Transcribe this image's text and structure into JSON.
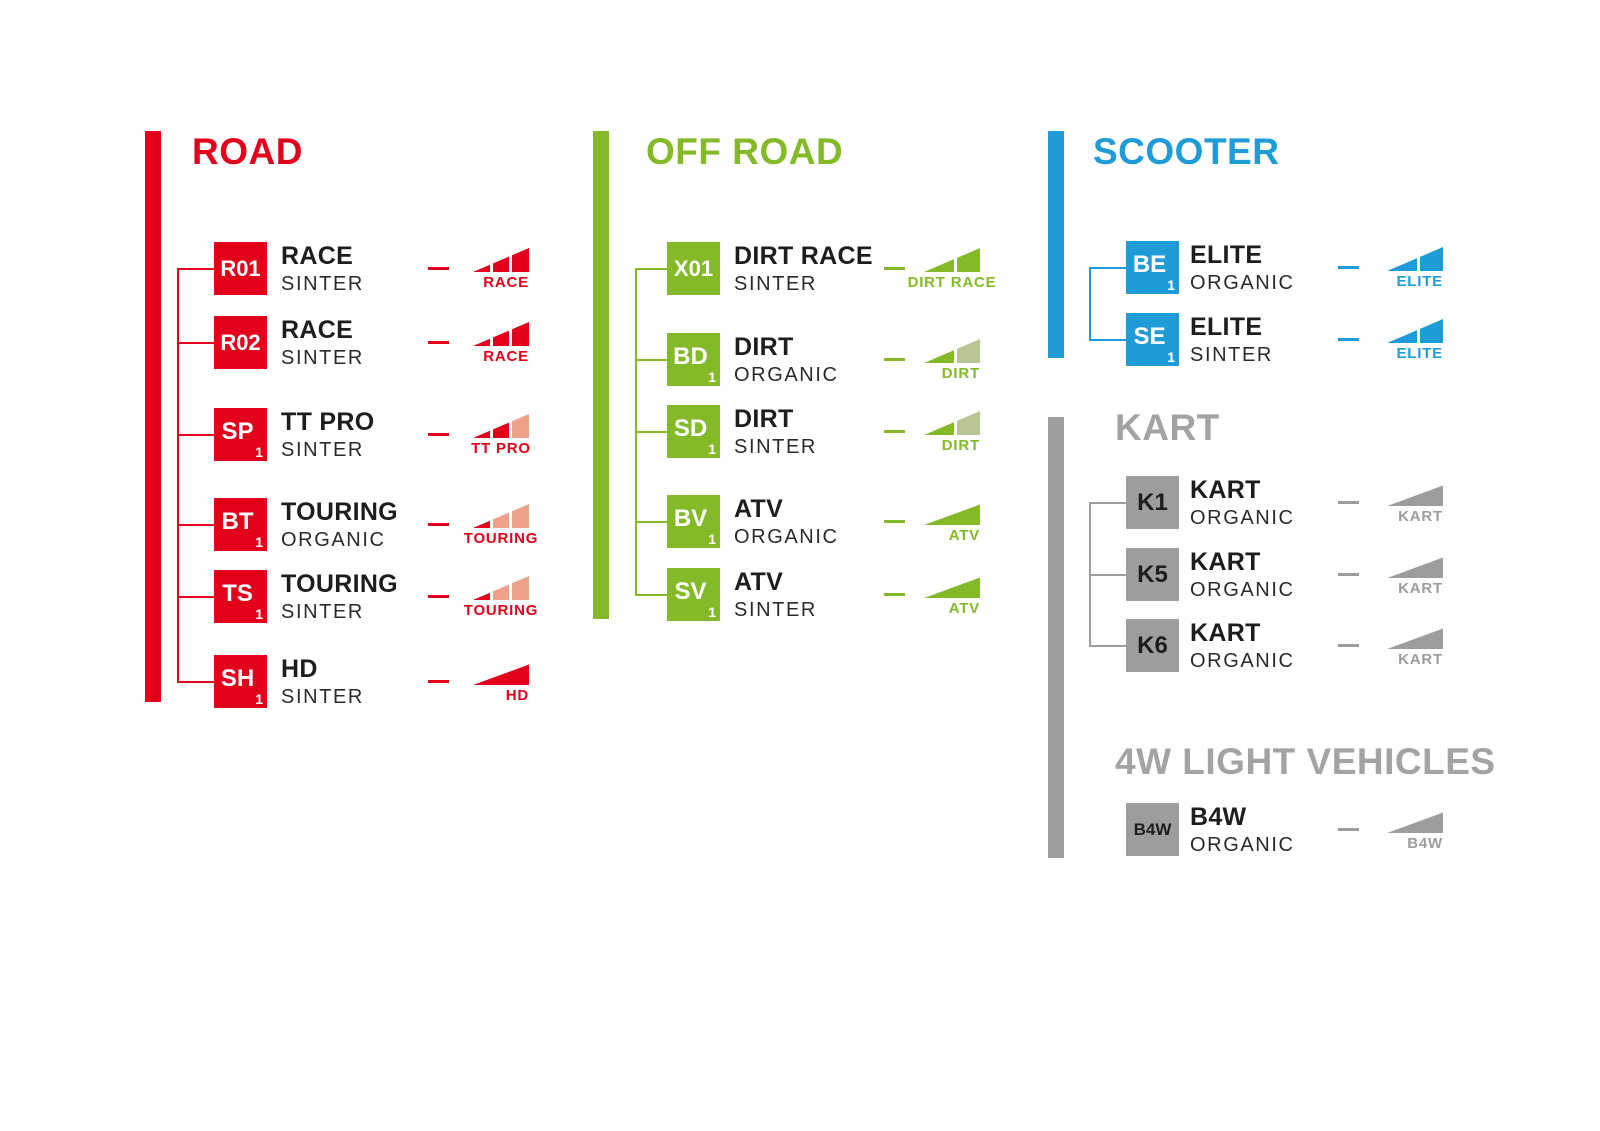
{
  "canvas": {
    "background": "#ffffff",
    "text_color": "#1d1d1b"
  },
  "sections": [
    {
      "id": "road",
      "title": "ROAD",
      "color": "#e2001a",
      "muted_color": "#efa288",
      "title_color": "#e2001a",
      "code_text_color": "#ffffff",
      "items": [
        {
          "code": "R01",
          "sub": "",
          "name": "RACE",
          "compound": "SINTER",
          "icon_style": "slices3",
          "icon_filled": 3,
          "icon_label": "RACE"
        },
        {
          "code": "R02",
          "sub": "",
          "name": "RACE",
          "compound": "SINTER",
          "icon_style": "slices3",
          "icon_filled": 3,
          "icon_label": "RACE"
        },
        {
          "code": "SP",
          "sub": "1",
          "name": "TT PRO",
          "compound": "SINTER",
          "icon_style": "slices3",
          "icon_filled": 2,
          "icon_label": "TT PRO"
        },
        {
          "code": "BT",
          "sub": "1",
          "name": "TOURING",
          "compound": "ORGANIC",
          "icon_style": "slices3",
          "icon_filled": 1,
          "icon_label": "TOURING"
        },
        {
          "code": "TS",
          "sub": "1",
          "name": "TOURING",
          "compound": "SINTER",
          "icon_style": "slices3",
          "icon_filled": 1,
          "icon_label": "TOURING"
        },
        {
          "code": "SH",
          "sub": "1",
          "name": "HD",
          "compound": "SINTER",
          "icon_style": "triangle",
          "icon_filled": 1,
          "icon_label": "HD"
        }
      ]
    },
    {
      "id": "off_road",
      "title": "OFF ROAD",
      "color": "#84ba28",
      "muted_color": "#b7c693",
      "title_color": "#84ba28",
      "code_text_color": "#ffffff",
      "items": [
        {
          "code": "X01",
          "sub": "",
          "name": "DIRT RACE",
          "compound": "SINTER",
          "icon_style": "slices2",
          "icon_filled": 2,
          "icon_label": "DIRT RACE"
        },
        {
          "code": "BD",
          "sub": "1",
          "name": "DIRT",
          "compound": "ORGANIC",
          "icon_style": "slices2",
          "icon_filled": 1,
          "icon_label": "DIRT"
        },
        {
          "code": "SD",
          "sub": "1",
          "name": "DIRT",
          "compound": "SINTER",
          "icon_style": "slices2",
          "icon_filled": 1,
          "icon_label": "DIRT"
        },
        {
          "code": "BV",
          "sub": "1",
          "name": "ATV",
          "compound": "ORGANIC",
          "icon_style": "triangle",
          "icon_filled": 1,
          "icon_label": "ATV"
        },
        {
          "code": "SV",
          "sub": "1",
          "name": "ATV",
          "compound": "SINTER",
          "icon_style": "triangle",
          "icon_filled": 1,
          "icon_label": "ATV"
        }
      ]
    },
    {
      "id": "scooter",
      "title": "SCOOTER",
      "color": "#1f9cd8",
      "muted_color": "#a6d5ef",
      "title_color": "#1f9cd8",
      "code_text_color": "#ffffff",
      "items": [
        {
          "code": "BE",
          "sub": "1",
          "name": "ELITE",
          "compound": "ORGANIC",
          "icon_style": "slices2",
          "icon_filled": 2,
          "icon_label": "ELITE"
        },
        {
          "code": "SE",
          "sub": "1",
          "name": "ELITE",
          "compound": "SINTER",
          "icon_style": "slices2",
          "icon_filled": 2,
          "icon_label": "ELITE"
        }
      ]
    },
    {
      "id": "kart",
      "title": "KART",
      "color": "#9d9d9c",
      "muted_color": "#cfcfce",
      "title_color": "#a3a3a2",
      "code_text_color": "#1d1d1b",
      "items": [
        {
          "code": "K1",
          "sub": "",
          "name": "KART",
          "compound": "ORGANIC",
          "icon_style": "triangle",
          "icon_filled": 1,
          "icon_label": "KART"
        },
        {
          "code": "K5",
          "sub": "",
          "name": "KART",
          "compound": "ORGANIC",
          "icon_style": "triangle",
          "icon_filled": 1,
          "icon_label": "KART"
        },
        {
          "code": "K6",
          "sub": "",
          "name": "KART",
          "compound": "ORGANIC",
          "icon_style": "triangle",
          "icon_filled": 1,
          "icon_label": "KART"
        }
      ]
    },
    {
      "id": "four_w_light_vehicles",
      "title": "4W LIGHT VEHICLES",
      "color": "#9d9d9c",
      "muted_color": "#cfcfce",
      "title_color": "#a3a3a2",
      "code_text_color": "#1d1d1b",
      "items": [
        {
          "code": "B4W",
          "sub": "",
          "name": "B4W",
          "compound": "ORGANIC",
          "icon_style": "triangle",
          "icon_filled": 1,
          "icon_label": "B4W"
        }
      ]
    }
  ]
}
